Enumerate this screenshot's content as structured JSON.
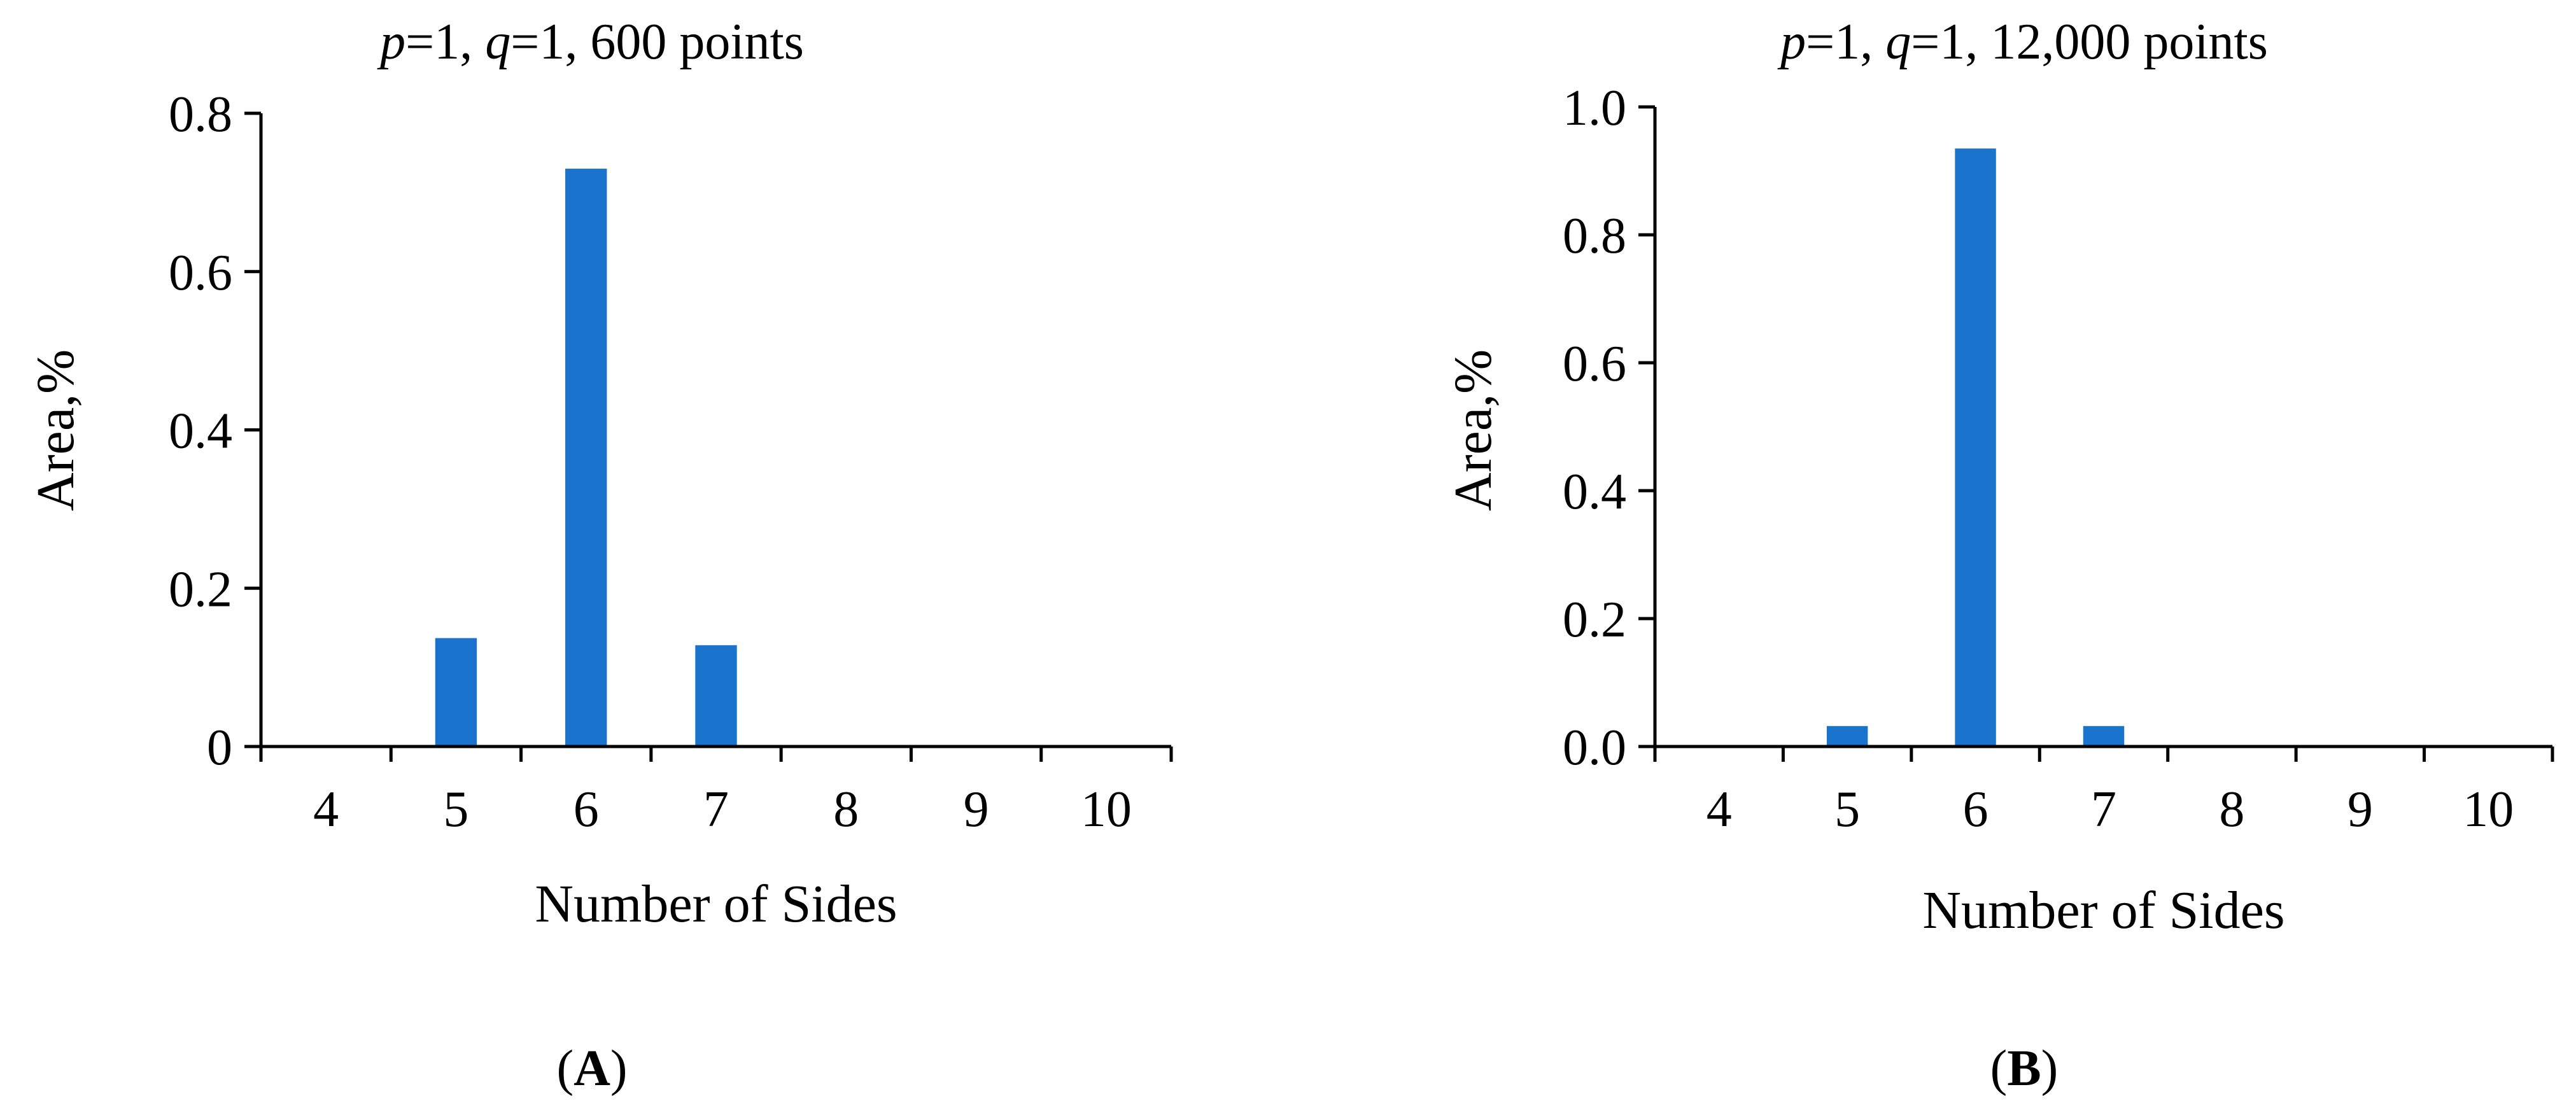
{
  "chart_data": [
    {
      "type": "bar",
      "title_parts": [
        {
          "text": "p",
          "italic": true
        },
        {
          "text": "=1, ",
          "italic": false
        },
        {
          "text": "q",
          "italic": true
        },
        {
          "text": "=1, 600 points",
          "italic": false
        }
      ],
      "categories": [
        "4",
        "5",
        "6",
        "7",
        "8",
        "9",
        "10"
      ],
      "values": [
        0,
        0.137,
        0.73,
        0.128,
        0,
        0,
        0
      ],
      "xlabel": "Number of Sides",
      "ylabel": "Area,%",
      "ylim": [
        0,
        0.8
      ],
      "yticks": [
        "0",
        "0.2",
        "0.4",
        "0.6",
        "0.8"
      ],
      "bar_color": "#1a73cc",
      "grid": false,
      "legend": "none",
      "panel_parts": [
        {
          "text": "(",
          "bold": false
        },
        {
          "text": "A",
          "bold": true
        },
        {
          "text": ")",
          "bold": false
        }
      ]
    },
    {
      "type": "bar",
      "title_parts": [
        {
          "text": "p",
          "italic": true
        },
        {
          "text": "=1, ",
          "italic": false
        },
        {
          "text": "q",
          "italic": true
        },
        {
          "text": "=1, 12,000 points",
          "italic": false
        }
      ],
      "categories": [
        "4",
        "5",
        "6",
        "7",
        "8",
        "9",
        "10"
      ],
      "values": [
        0,
        0.032,
        0.935,
        0.032,
        0,
        0,
        0
      ],
      "xlabel": "Number of Sides",
      "ylabel": "Area,%",
      "ylim": [
        0,
        1.0
      ],
      "yticks": [
        "0.0",
        "0.2",
        "0.4",
        "0.6",
        "0.8",
        "1.0"
      ],
      "bar_color": "#1a73cc",
      "grid": false,
      "legend": "none",
      "panel_parts": [
        {
          "text": "(",
          "bold": false
        },
        {
          "text": "B",
          "bold": true
        },
        {
          "text": ")",
          "bold": false
        }
      ]
    }
  ]
}
